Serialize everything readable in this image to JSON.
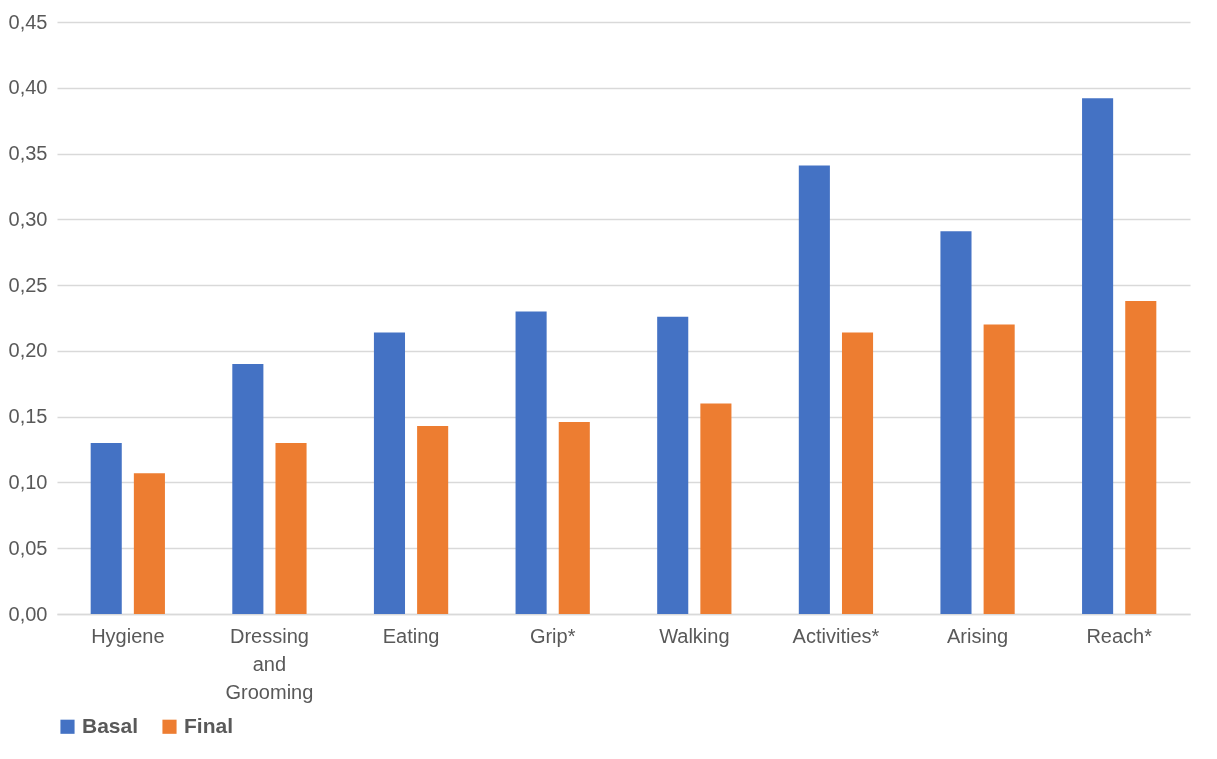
{
  "chart_data": {
    "type": "bar",
    "categories": [
      "Hygiene",
      "Dressing and Grooming",
      "Eating",
      "Grip*",
      "Walking",
      "Activities*",
      "Arising",
      "Reach*"
    ],
    "series": [
      {
        "name": "Basal",
        "color": "#4472c4",
        "values": [
          0.13,
          0.19,
          0.214,
          0.23,
          0.226,
          0.341,
          0.291,
          0.392
        ]
      },
      {
        "name": "Final",
        "color": "#ed7d31",
        "values": [
          0.107,
          0.13,
          0.143,
          0.146,
          0.16,
          0.214,
          0.22,
          0.238
        ]
      }
    ],
    "ylim": [
      0,
      0.45
    ],
    "yticks": [
      {
        "value": 0,
        "label": "0,00"
      },
      {
        "value": 0.05,
        "label": "0,05"
      },
      {
        "value": 0.1,
        "label": "0,10"
      },
      {
        "value": 0.15,
        "label": "0,15"
      },
      {
        "value": 0.2,
        "label": "0,20"
      },
      {
        "value": 0.25,
        "label": "0,25"
      },
      {
        "value": 0.3,
        "label": "0,30"
      },
      {
        "value": 0.35,
        "label": "0,35"
      },
      {
        "value": 0.4,
        "label": "0,40"
      },
      {
        "value": 0.45,
        "label": "0,45"
      }
    ],
    "grid": "y",
    "legend": "bottom"
  }
}
